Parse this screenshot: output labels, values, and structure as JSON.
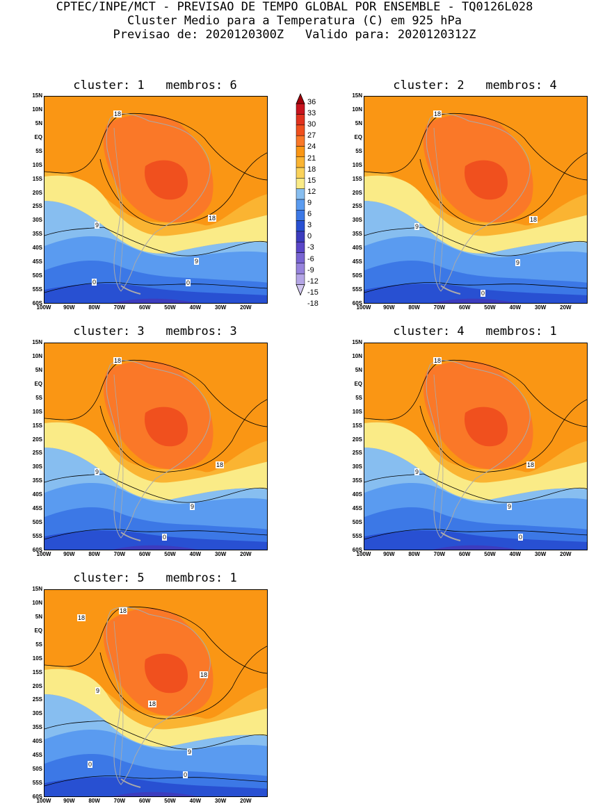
{
  "header": {
    "line1": "CPTEC/INPE/MCT - PREVISAO DE TEMPO GLOBAL POR ENSEMBLE - TQ0126L028",
    "line2": "Cluster Medio para a Temperatura (C) em 925 hPa",
    "line3": "Previsao de: 2020120300Z   Valido para: 2020120312Z"
  },
  "axes": {
    "lat_ticks": [
      "15N",
      "10N",
      "5N",
      "EQ",
      "5S",
      "10S",
      "15S",
      "20S",
      "25S",
      "30S",
      "35S",
      "40S",
      "45S",
      "50S",
      "55S",
      "60S"
    ],
    "lon_ticks": [
      "100W",
      "90W",
      "80W",
      "70W",
      "60W",
      "50W",
      "40W",
      "30W",
      "20W"
    ]
  },
  "colorbar": {
    "labels": [
      "36",
      "33",
      "30",
      "27",
      "24",
      "21",
      "18",
      "15",
      "12",
      "9",
      "6",
      "3",
      "0",
      "-3",
      "-6",
      "-9",
      "-12",
      "-15",
      "-18"
    ],
    "colors": [
      "#a0000a",
      "#c8141e",
      "#e1321e",
      "#f0501e",
      "#fa7828",
      "#fa9614",
      "#fab432",
      "#fad25a",
      "#faeb87",
      "#87bef0",
      "#5a9bf0",
      "#3c78e6",
      "#2850d2",
      "#3c3cbe",
      "#5a46c8",
      "#7864d2",
      "#9682dc",
      "#b4a5e6",
      "#d2c8f0"
    ]
  },
  "panels": [
    {
      "title": "cluster: 1   membros: 6",
      "labels": [
        "18",
        "18",
        "9",
        "9",
        "0",
        "0"
      ]
    },
    {
      "title": "cluster: 2   membros: 4",
      "labels": [
        "18",
        "18",
        "9",
        "9",
        "0"
      ]
    },
    {
      "title": "cluster: 3   membros: 3",
      "labels": [
        "18",
        "18",
        "9",
        "9",
        "0"
      ]
    },
    {
      "title": "cluster: 4   membros: 1",
      "labels": [
        "18",
        "18",
        "9",
        "9",
        "0"
      ]
    },
    {
      "title": "cluster: 5   membros: 1",
      "labels": [
        "18",
        "18",
        "18",
        "18",
        "9",
        "9",
        "0",
        "0"
      ]
    }
  ]
}
